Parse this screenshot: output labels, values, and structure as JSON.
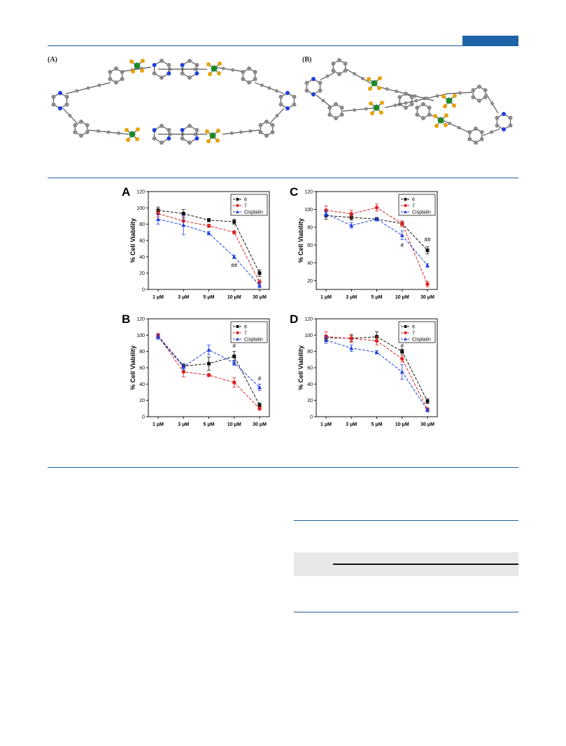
{
  "header": {
    "accent": "#1f64a8"
  },
  "figure_top": {
    "labels": [
      "(A)",
      "(B)"
    ]
  },
  "colors": {
    "s6": "#111111",
    "s7": "#e02020",
    "cis": "#1f3fe0",
    "atom": "#8a8a8a",
    "N": "#1f3fe0",
    "Pt": "#1d8a2a",
    "F": "#e8a20a"
  },
  "chart_data": [
    {
      "type": "line",
      "panel": "A",
      "categories": [
        "1 μM",
        "3 μM",
        "5 μM",
        "10 μM",
        "30 μM"
      ],
      "ylabel": "% Cell Viability",
      "ylim": [
        0,
        120
      ],
      "yticks": [
        0,
        20,
        40,
        60,
        80,
        100,
        120
      ],
      "series": [
        {
          "name": "6",
          "values": [
            97,
            93,
            85,
            83,
            20
          ],
          "err": [
            4,
            5,
            2,
            3,
            4
          ]
        },
        {
          "name": "7",
          "values": [
            93,
            84,
            78,
            70,
            9
          ],
          "err": [
            4,
            6,
            2,
            2,
            3
          ]
        },
        {
          "name": "Cisplatin",
          "values": [
            86,
            79,
            69,
            40,
            5
          ],
          "err": [
            6,
            12,
            2,
            2,
            3
          ]
        }
      ],
      "annotations": [
        {
          "text": "##",
          "x": "10 μM",
          "y": 30
        }
      ],
      "legend": "top-right"
    },
    {
      "type": "line",
      "panel": "B",
      "categories": [
        "1 μM",
        "3 μM",
        "5 μM",
        "10 μM",
        "30 μM"
      ],
      "ylabel": "% Cell Viability",
      "ylim": [
        0,
        120
      ],
      "yticks": [
        0,
        20,
        40,
        60,
        80,
        100,
        120
      ],
      "series": [
        {
          "name": "6",
          "values": [
            99,
            62,
            65,
            74,
            14
          ],
          "err": [
            3,
            3,
            8,
            6,
            3
          ]
        },
        {
          "name": "7",
          "values": [
            99,
            55,
            51,
            42,
            10
          ],
          "err": [
            3,
            6,
            2,
            6,
            2
          ]
        },
        {
          "name": "Cisplatin",
          "values": [
            98,
            61,
            82,
            66,
            36
          ],
          "err": [
            3,
            4,
            6,
            3,
            4
          ]
        }
      ],
      "annotations": [
        {
          "text": "#",
          "x": "10 μM",
          "y": 87
        },
        {
          "text": "#",
          "x": "30 μM",
          "y": 47
        }
      ],
      "legend": "top-right"
    },
    {
      "type": "line",
      "panel": "C",
      "categories": [
        "1 μM",
        "3 μM",
        "5 μM",
        "10 μM",
        "30 μM"
      ],
      "ylabel": "% Cell Viability",
      "ylim": [
        10,
        120
      ],
      "yticks": [
        20,
        40,
        60,
        80,
        100,
        120
      ],
      "series": [
        {
          "name": "6",
          "values": [
            93,
            91,
            89,
            84,
            54
          ],
          "err": [
            4,
            3,
            2,
            3,
            4
          ]
        },
        {
          "name": "7",
          "values": [
            99,
            95,
            102,
            84,
            16
          ],
          "err": [
            5,
            4,
            4,
            3,
            3
          ]
        },
        {
          "name": "Cisplatin",
          "values": [
            95,
            82,
            89,
            71,
            37
          ],
          "err": [
            3,
            3,
            2,
            5,
            2
          ]
        }
      ],
      "annotations": [
        {
          "text": "#",
          "x": "10 μM",
          "y": 60
        },
        {
          "text": "##",
          "x": "30 μM",
          "y": 66
        }
      ],
      "legend": "top-right"
    },
    {
      "type": "line",
      "panel": "D",
      "categories": [
        "1 μM",
        "3 μM",
        "5 μM",
        "10 μM",
        "30 μM"
      ],
      "ylabel": "% Cell Viability",
      "ylim": [
        0,
        120
      ],
      "yticks": [
        0,
        20,
        40,
        60,
        80,
        100,
        120
      ],
      "series": [
        {
          "name": "6",
          "values": [
            97,
            96,
            98,
            80,
            19
          ],
          "err": [
            3,
            4,
            6,
            3,
            3
          ]
        },
        {
          "name": "7",
          "values": [
            98,
            96,
            93,
            71,
            9
          ],
          "err": [
            6,
            5,
            5,
            4,
            2
          ]
        },
        {
          "name": "Cisplatin",
          "values": [
            94,
            84,
            79,
            55,
            8
          ],
          "err": [
            4,
            4,
            2,
            9,
            2
          ]
        }
      ],
      "annotations": [
        {
          "text": "#",
          "x": "10 μM",
          "y": 87
        }
      ],
      "legend": "top-right"
    }
  ]
}
